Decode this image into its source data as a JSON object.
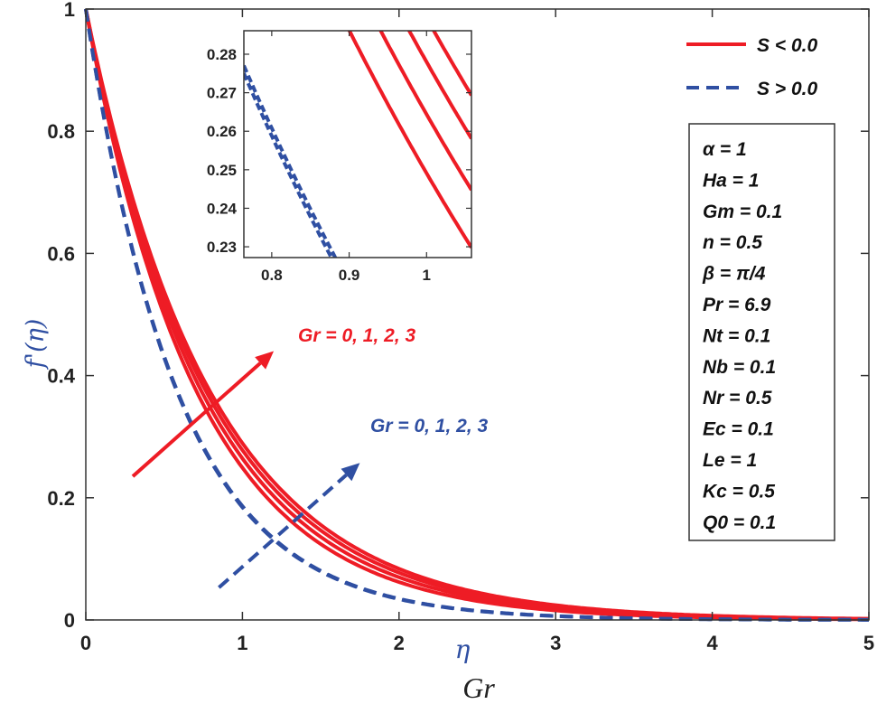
{
  "chart_data": {
    "type": "line",
    "title": "",
    "xlabel": "η",
    "ylabel": "f'(η)",
    "bottom_label": "Gr",
    "xlim": [
      0,
      5
    ],
    "ylim": [
      0,
      1
    ],
    "xticks": [
      "0",
      "1",
      "2",
      "3",
      "4",
      "5"
    ],
    "yticks": [
      "0",
      "0.2",
      "0.4",
      "0.6",
      "0.8",
      "1"
    ],
    "grid": false,
    "x": [
      0,
      0.2,
      0.4,
      0.6,
      0.8,
      1.0,
      1.2,
      1.4,
      1.6,
      1.8,
      2.0,
      2.2,
      2.4,
      2.6,
      2.8,
      3.0,
      3.2,
      3.4,
      3.6,
      3.8,
      4.0,
      4.2,
      4.4,
      4.6,
      4.8,
      5.0
    ],
    "series": [
      {
        "name": "S < 0.0, Gr = 0",
        "style": "solid",
        "color": "#ee1c25",
        "values": [
          1,
          0.757,
          0.5735,
          0.4343,
          0.3289,
          0.2491,
          0.1886,
          0.1428,
          0.1082,
          0.0819,
          0.062,
          0.047,
          0.0356,
          0.0269,
          0.0204,
          0.0155,
          0.0117,
          0.0089,
          0.0067,
          0.0051,
          0.0039,
          0.0029,
          0.0022,
          0.0017,
          0.0013,
          0.001
        ]
      },
      {
        "name": "S < 0.0, Gr = 1",
        "style": "solid",
        "color": "#ee1c25",
        "values": [
          1,
          0.766,
          0.5874,
          0.4502,
          0.345,
          0.2644,
          0.2026,
          0.1553,
          0.119,
          0.0912,
          0.0699,
          0.0536,
          0.0411,
          0.0315,
          0.0241,
          0.0185,
          0.0142,
          0.0109,
          0.0083,
          0.0064,
          0.0049,
          0.0037,
          0.0029,
          0.0022,
          0.0017,
          0.0013
        ]
      },
      {
        "name": "S < 0.0, Gr = 2",
        "style": "solid",
        "color": "#ee1c25",
        "values": [
          1,
          0.774,
          0.5992,
          0.4639,
          0.3591,
          0.278,
          0.2152,
          0.1666,
          0.129,
          0.0998,
          0.0773,
          0.0598,
          0.0463,
          0.0359,
          0.0278,
          0.0215,
          0.0166,
          0.0129,
          0.01,
          0.0077,
          0.006,
          0.0046,
          0.0036,
          0.0028,
          0.0021,
          0.0017
        ]
      },
      {
        "name": "S < 0.0, Gr = 3",
        "style": "solid",
        "color": "#ee1c25",
        "values": [
          1,
          0.78,
          0.609,
          0.4753,
          0.3709,
          0.2894,
          0.2259,
          0.1763,
          0.1376,
          0.1073,
          0.0838,
          0.0654,
          0.051,
          0.0398,
          0.0311,
          0.0242,
          0.0189,
          0.0148,
          0.0115,
          0.009,
          0.007,
          0.0055,
          0.0043,
          0.0033,
          0.0026,
          0.002
        ]
      },
      {
        "name": "S > 0.0, Gr = 0",
        "style": "dashed",
        "color": "#2f4fa2",
        "values": [
          1,
          0.713,
          0.5087,
          0.3628,
          0.2588,
          0.1845,
          0.1316,
          0.0939,
          0.067,
          0.0478,
          0.0341,
          0.0243,
          0.0173,
          0.0124,
          0.0088,
          0.0063,
          0.0045,
          0.0032,
          0.0023,
          0.0016,
          0.0012,
          0.0008,
          0.0006,
          0.0004,
          0.0003,
          0.0002
        ]
      },
      {
        "name": "S > 0.0, Gr = 3",
        "style": "dashed",
        "color": "#2f4fa2",
        "values": [
          1,
          0.715,
          0.5107,
          0.3649,
          0.2608,
          0.1864,
          0.1332,
          0.0952,
          0.068,
          0.0486,
          0.0347,
          0.0248,
          0.0177,
          0.0127,
          0.0091,
          0.0065,
          0.0046,
          0.0033,
          0.0024,
          0.0017,
          0.0012,
          0.0009,
          0.0006,
          0.0004,
          0.0003,
          0.0002
        ]
      }
    ],
    "legend": {
      "placement": "top-right",
      "entries": [
        "S < 0.0",
        "S > 0.0"
      ]
    },
    "annotations": [
      {
        "text": "Gr = 0, 1, 2, 3",
        "color": "#ee1c25",
        "arrow_from": [
          0.3,
          0.235
        ],
        "arrow_to": [
          1.2,
          0.44
        ],
        "arrow_style": "solid"
      },
      {
        "text": "Gr = 0, 1, 2, 3",
        "color": "#2f4fa2",
        "arrow_from": [
          0.85,
          0.053
        ],
        "arrow_to": [
          1.75,
          0.257
        ],
        "arrow_style": "dashed"
      }
    ],
    "parameters": [
      "α = 1",
      "Ha = 1",
      "Gm = 0.1",
      "n = 0.5",
      "β = π/4",
      "Pr = 6.9",
      "Nt = 0.1",
      "Nb = 0.1",
      "Nr = 0.5",
      "Ec = 0.1",
      "Le = 1",
      "Kc = 0.5",
      "Q0 = 0.1"
    ],
    "inset": {
      "xlim": [
        0.764,
        1.058
      ],
      "ylim": [
        0.2272,
        0.2861
      ],
      "xticks": [
        "0.8",
        "0.9",
        "1"
      ],
      "yticks": [
        "0.23",
        "0.24",
        "0.25",
        "0.26",
        "0.27",
        "0.28"
      ]
    }
  }
}
